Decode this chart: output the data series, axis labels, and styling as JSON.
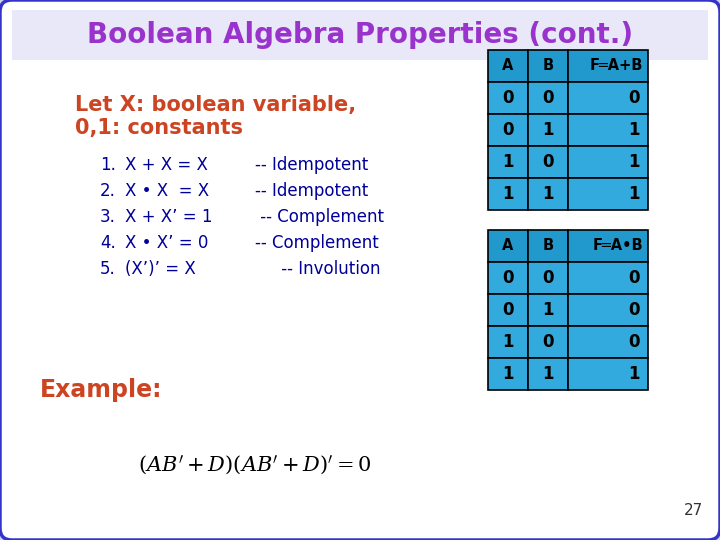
{
  "title": "Boolean Algebra Properties (cont.)",
  "title_color": "#9933CC",
  "background_color": "#FFFFFF",
  "border_color": "#3333CC",
  "slide_bg": "#D0D0E8",
  "let_text1": "Let X: boolean variable,",
  "let_text2": "0,1: constants",
  "let_color": "#CC4422",
  "items": [
    [
      "1.",
      "X + X = X",
      "-- Idempotent"
    ],
    [
      "2.",
      "X • X  = X",
      "-- Idempotent"
    ],
    [
      "3.",
      "X + X’ = 1",
      " -- Complement"
    ],
    [
      "4.",
      "X • X’ = 0",
      "-- Complement"
    ],
    [
      "5.",
      "(X’)’ = X",
      "     -- Involution"
    ]
  ],
  "items_color": "#000099",
  "example_text": "Example:",
  "example_color": "#CC4422",
  "table1_header": [
    "A",
    "B",
    "F═A+B"
  ],
  "table1_data": [
    [
      0,
      0,
      0
    ],
    [
      0,
      1,
      1
    ],
    [
      1,
      0,
      1
    ],
    [
      1,
      1,
      1
    ]
  ],
  "table2_header": [
    "A",
    "B",
    "F═A•B"
  ],
  "table2_data": [
    [
      0,
      0,
      0
    ],
    [
      0,
      1,
      0
    ],
    [
      1,
      0,
      0
    ],
    [
      1,
      1,
      1
    ]
  ],
  "table_header_bg": "#2299CC",
  "table_cell_bg": "#33AADD",
  "table_text_color": "#000000",
  "page_number": "27"
}
